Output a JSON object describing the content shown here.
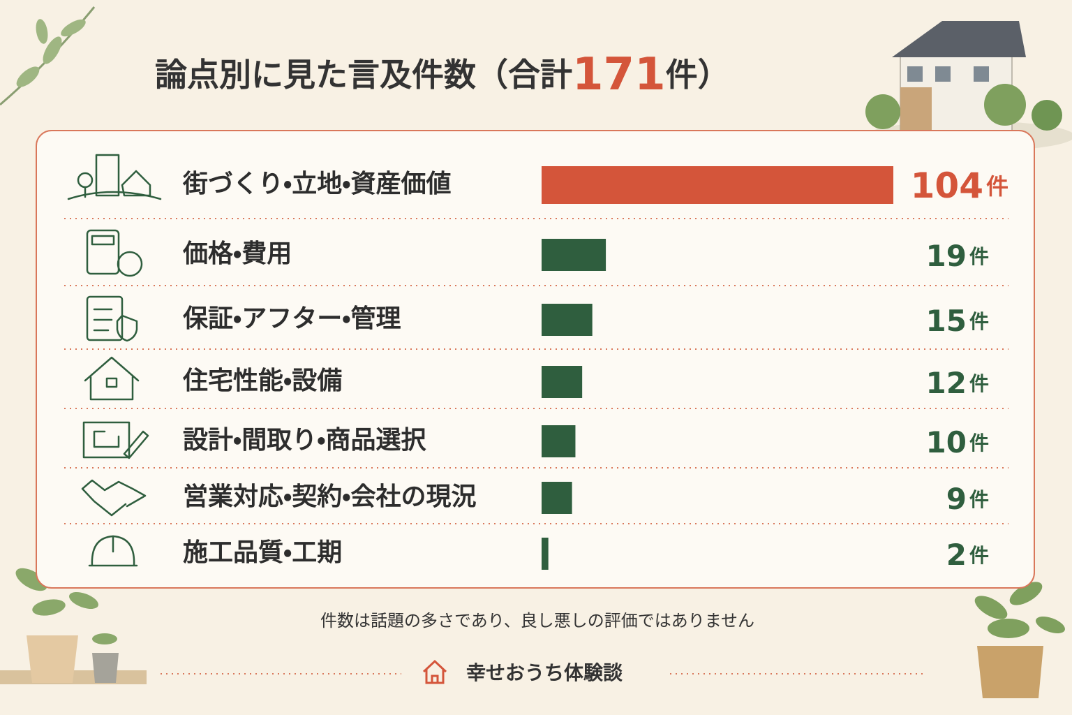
{
  "chart_data": {
    "type": "bar",
    "orientation": "horizontal",
    "title": "論点別に見た言及件数",
    "title_total_before": "（合計",
    "title_total": 171,
    "title_total_after": "件）",
    "categories": [
      "街づくり・立地・資産価値",
      "価格・費用",
      "保証・アフター・管理",
      "住宅性能・設備",
      "設計・間取り・商品選択",
      "営業対応・契約・会社の現況",
      "施工品質・工期"
    ],
    "values": [
      104,
      19,
      15,
      12,
      10,
      9,
      2
    ],
    "unit": "件",
    "colors": [
      "#d4553a",
      "#2f5e3e",
      "#2f5e3e",
      "#2f5e3e",
      "#2f5e3e",
      "#2f5e3e",
      "#2f5e3e"
    ],
    "xlim": [
      0,
      104
    ],
    "note": "件数は話題の多さであり、良し悪しの評価ではありません",
    "brand": "幸せおうち体験談"
  }
}
